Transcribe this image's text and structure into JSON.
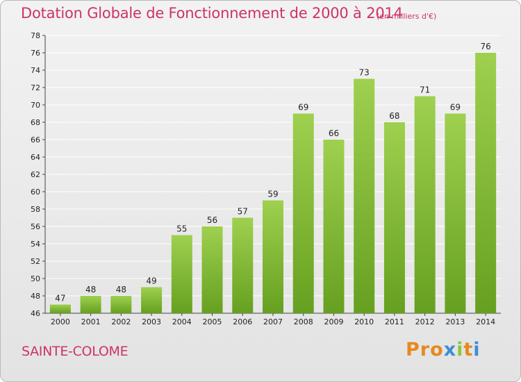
{
  "header": {
    "title": "Dotation Globale de Fonctionnement de 2000 à 2014",
    "unit": "(en milliers d'€)"
  },
  "footer": {
    "town": "SAINTE-COLOME",
    "brand": "Proxiti",
    "brand_colors": [
      "#e58a1f",
      "#e58a1f",
      "#e58a1f",
      "#3b8ed6",
      "#8cc63f",
      "#e58a1f",
      "#3b8ed6"
    ]
  },
  "colors": {
    "bar_top": "#9fd04f",
    "bar_bottom": "#66a020",
    "grid": "#ffffff",
    "axis_text": "#222222",
    "accent": "#cc3366"
  },
  "chart_data": {
    "type": "bar",
    "title": "Dotation Globale de Fonctionnement de 2000 à 2014",
    "subtitle": "(en milliers d'€)",
    "xlabel": "",
    "ylabel": "",
    "categories": [
      "2000",
      "2001",
      "2002",
      "2003",
      "2004",
      "2005",
      "2006",
      "2007",
      "2008",
      "2009",
      "2010",
      "2011",
      "2012",
      "2013",
      "2014"
    ],
    "values": [
      47,
      48,
      48,
      49,
      55,
      56,
      57,
      59,
      69,
      66,
      73,
      68,
      71,
      69,
      76
    ],
    "ylim": [
      46,
      78
    ],
    "yticks": [
      46,
      48,
      50,
      52,
      54,
      56,
      58,
      60,
      62,
      64,
      66,
      68,
      70,
      72,
      74,
      76,
      78
    ],
    "grid": true,
    "data_labels": true
  }
}
